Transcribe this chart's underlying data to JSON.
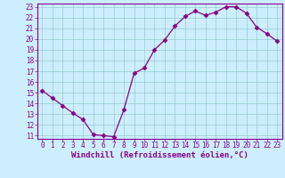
{
  "x": [
    0,
    1,
    2,
    3,
    4,
    5,
    6,
    7,
    8,
    9,
    10,
    11,
    12,
    13,
    14,
    15,
    16,
    17,
    18,
    19,
    20,
    21,
    22,
    23
  ],
  "y": [
    15.2,
    14.5,
    13.8,
    13.1,
    12.5,
    11.1,
    11.0,
    10.9,
    13.4,
    16.8,
    17.3,
    19.0,
    19.9,
    21.2,
    22.1,
    22.6,
    22.2,
    22.5,
    23.0,
    23.0,
    22.4,
    21.1,
    20.5,
    19.8
  ],
  "line_color": "#880088",
  "marker": "D",
  "marker_size": 2.5,
  "bg_color": "#cceeff",
  "grid_color": "#99cccc",
  "xlabel": "Windchill (Refroidissement éolien,°C)",
  "xlabel_color": "#880088",
  "ylim": [
    11,
    23
  ],
  "xlim": [
    -0.5,
    23.5
  ],
  "yticks": [
    11,
    12,
    13,
    14,
    15,
    16,
    17,
    18,
    19,
    20,
    21,
    22,
    23
  ],
  "xticks": [
    0,
    1,
    2,
    3,
    4,
    5,
    6,
    7,
    8,
    9,
    10,
    11,
    12,
    13,
    14,
    15,
    16,
    17,
    18,
    19,
    20,
    21,
    22,
    23
  ],
  "tick_label_size": 5.5,
  "xlabel_size": 6.5
}
